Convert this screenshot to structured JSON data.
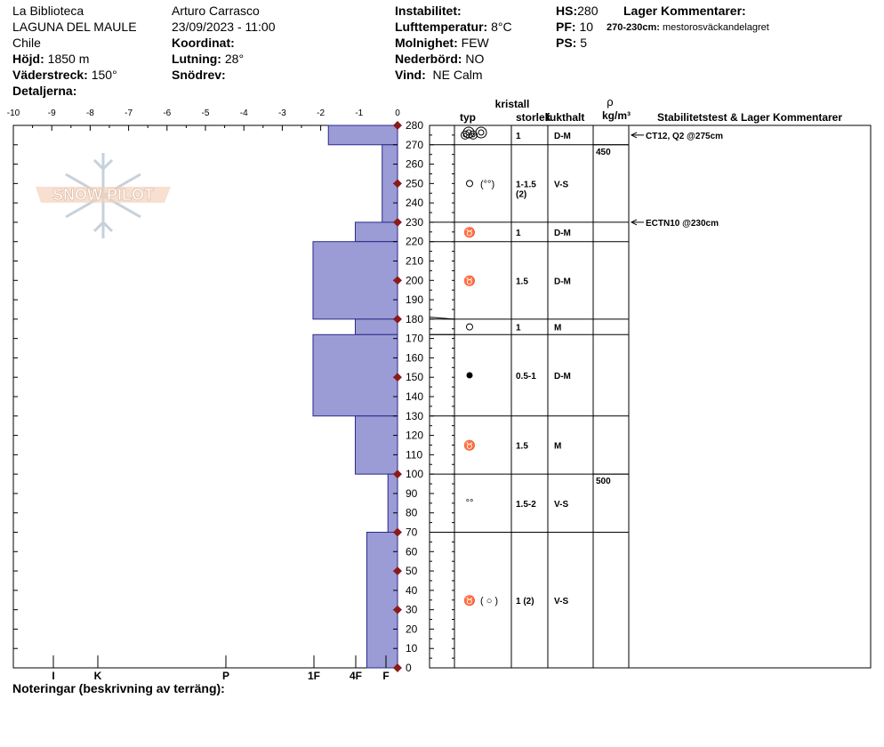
{
  "header": {
    "location": "La Biblioteca",
    "area": "LAGUNA DEL MAULE",
    "country": "Chile",
    "elevation_label": "Höjd:",
    "elevation": "1850 m",
    "aspect_label": "Väderstreck:",
    "aspect": "150°",
    "details_label": "Detaljerna:",
    "observer": "Arturo Carrasco",
    "datetime": "23/09/2023 - 11:00",
    "coord_label": "Koordinat:",
    "slope_label": "Lutning:",
    "slope": "28°",
    "drift_label": "Snödrev:",
    "instability_label": "Instabilitet:",
    "airtemp_label": "Lufttemperatur:",
    "airtemp": "8°C",
    "sky_label": "Molnighet:",
    "sky": "FEW",
    "precip_label": "Nederbörd:",
    "precip": "NO",
    "wind_label": "Vind:",
    "wind": "NE Calm",
    "hs_label": "HS:",
    "hs": "280",
    "pf_label": "PF:",
    "pf": "10",
    "ps_label": "PS:",
    "ps": "5",
    "layer_comments_label": "Lager Kommentarer:",
    "layer_comment_range": "270-230cm:",
    "layer_comment_text": "mestorosväckandelagret"
  },
  "columns": {
    "crystal": "kristall",
    "type": "typ",
    "size": "storlek",
    "moisture": "fukthalt",
    "rho": "ρ",
    "density_unit": "kg/m³",
    "stability": "Stabilitetstest & Lager Kommentarer"
  },
  "logo": {
    "text": "SNOW PILOT"
  },
  "footer": {
    "notes_label": "Noteringar (beskrivning av terräng):"
  },
  "chart_data": {
    "type": "snow-profile",
    "temp_axis_ticks": [
      "-10",
      "-9",
      "-8",
      "-7",
      "-6",
      "-5",
      "-4",
      "-3",
      "-2",
      "-1",
      "0"
    ],
    "hardness_ticks": [
      "I",
      "K",
      "P",
      "1F",
      "4F",
      "F"
    ],
    "height_range": [
      0,
      280
    ],
    "height_ticks": [
      "280",
      "270",
      "260",
      "250",
      "240",
      "230",
      "220",
      "210",
      "200",
      "190",
      "180",
      "170",
      "160",
      "150",
      "140",
      "130",
      "120",
      "110",
      "100",
      "90",
      "80",
      "70",
      "60",
      "50",
      "40",
      "30",
      "20",
      "10",
      "0"
    ],
    "hardness_profile": [
      {
        "top": 280,
        "bottom": 270,
        "hardness": 1.8
      },
      {
        "top": 270,
        "bottom": 230,
        "hardness": 0.4
      },
      {
        "top": 230,
        "bottom": 220,
        "hardness": 1.1
      },
      {
        "top": 220,
        "bottom": 180,
        "hardness": 2.2
      },
      {
        "top": 180,
        "bottom": 172,
        "hardness": 1.1
      },
      {
        "top": 172,
        "bottom": 130,
        "hardness": 2.2
      },
      {
        "top": 130,
        "bottom": 100,
        "hardness": 1.1
      },
      {
        "top": 100,
        "bottom": 70,
        "hardness": 0.25
      },
      {
        "top": 70,
        "bottom": 0,
        "hardness": 0.8
      }
    ],
    "temp_points": [
      280,
      250,
      230,
      200,
      180,
      150,
      100,
      70,
      50,
      30,
      0
    ],
    "layers": [
      {
        "top": 280,
        "bottom": 270,
        "size": "1",
        "moisture": "D-M"
      },
      {
        "top": 270,
        "bottom": 230,
        "size": "1-1.5 (2)",
        "moisture": "V-S"
      },
      {
        "top": 230,
        "bottom": 220,
        "size": "1",
        "moisture": "D-M"
      },
      {
        "top": 220,
        "bottom": 180,
        "size": "1.5",
        "moisture": "D-M"
      },
      {
        "top": 180,
        "bottom": 172,
        "size": "1",
        "moisture": "M"
      },
      {
        "top": 172,
        "bottom": 130,
        "size": "0.5-1",
        "moisture": "D-M"
      },
      {
        "top": 130,
        "bottom": 100,
        "size": "1.5",
        "moisture": "M"
      },
      {
        "top": 100,
        "bottom": 70,
        "size": "1.5-2",
        "moisture": "V-S"
      },
      {
        "top": 70,
        "bottom": 0,
        "size": "1 (2)",
        "moisture": "V-S"
      }
    ],
    "densities": [
      {
        "height": 270,
        "value": "450"
      },
      {
        "height": 100,
        "value": "500"
      }
    ],
    "stability_tests": [
      {
        "height": 275,
        "label": "CT12, Q2 @275cm"
      },
      {
        "height": 230,
        "label": "ECTN10 @230cm"
      }
    ]
  }
}
